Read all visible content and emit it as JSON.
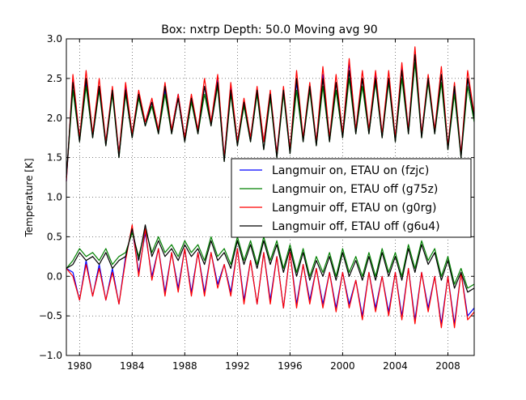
{
  "chart_data": {
    "type": "line",
    "title": "Box: nxtrp Depth: 50.0 Moving avg 90",
    "xlabel": "",
    "ylabel": "Temperature [K]",
    "xlim": [
      1979.0,
      2010.0
    ],
    "ylim": [
      -1.0,
      3.0
    ],
    "xticks": [
      1980,
      1984,
      1988,
      1992,
      1996,
      2000,
      2004,
      2008
    ],
    "xtick_labels": [
      "1980",
      "1984",
      "1988",
      "1992",
      "1996",
      "2000",
      "2004",
      "2008"
    ],
    "yticks": [
      -1.0,
      -0.5,
      0.0,
      0.5,
      1.0,
      1.5,
      2.0,
      2.5,
      3.0
    ],
    "ytick_labels": [
      "−1.0",
      "−0.5",
      "0.0",
      "0.5",
      "1.0",
      "1.5",
      "2.0",
      "2.5",
      "3.0"
    ],
    "grid": true,
    "legend_position": "center-right",
    "colors": {
      "fzjc": "#0000ff",
      "g75z": "#008000",
      "g0rg": "#ff0000",
      "g6u4": "#000000"
    },
    "groups": {
      "upper": {
        "x": [
          1979.0,
          1979.5,
          1980.0,
          1980.5,
          1981.0,
          1981.5,
          1982.0,
          1982.5,
          1983.0,
          1983.5,
          1984.0,
          1984.5,
          1985.0,
          1985.5,
          1986.0,
          1986.5,
          1987.0,
          1987.5,
          1988.0,
          1988.5,
          1989.0,
          1989.5,
          1990.0,
          1990.5,
          1991.0,
          1991.5,
          1992.0,
          1992.5,
          1993.0,
          1993.5,
          1994.0,
          1994.5,
          1995.0,
          1995.5,
          1996.0,
          1996.5,
          1997.0,
          1997.5,
          1998.0,
          1998.5,
          1999.0,
          1999.5,
          2000.0,
          2000.5,
          2001.0,
          2001.5,
          2002.0,
          2002.5,
          2003.0,
          2003.5,
          2004.0,
          2004.5,
          2005.0,
          2005.5,
          2006.0,
          2006.5,
          2007.0,
          2007.5,
          2008.0,
          2008.5,
          2009.0,
          2009.5,
          2010.0
        ],
        "series": [
          {
            "name": "Langmuir on, ETAU on (fzjc)",
            "key": "fzjc",
            "values": [
              1.2,
              2.5,
              1.75,
              2.45,
              1.8,
              2.4,
              1.7,
              2.35,
              1.55,
              2.4,
              1.8,
              2.3,
              1.95,
              2.2,
              1.85,
              2.35,
              1.85,
              2.3,
              1.75,
              2.25,
              1.85,
              2.4,
              1.95,
              2.5,
              1.5,
              2.4,
              1.7,
              2.2,
              1.75,
              2.35,
              1.7,
              2.3,
              1.55,
              2.35,
              1.6,
              2.45,
              1.75,
              2.4,
              1.7,
              2.55,
              1.75,
              2.45,
              1.8,
              2.7,
              1.85,
              2.5,
              1.85,
              2.55,
              1.8,
              2.5,
              1.75,
              2.65,
              1.85,
              2.85,
              1.8,
              2.5,
              1.85,
              2.55,
              1.65,
              2.35,
              1.55,
              2.5,
              2.0
            ]
          },
          {
            "name": "Langmuir on, ETAU off (g75z)",
            "key": "g75z",
            "values": [
              1.25,
              2.35,
              1.7,
              2.4,
              1.75,
              2.35,
              1.65,
              2.3,
              1.5,
              2.3,
              1.75,
              2.25,
              1.9,
              2.15,
              1.8,
              2.3,
              1.8,
              2.25,
              1.7,
              2.2,
              1.8,
              2.3,
              1.9,
              2.4,
              1.45,
              2.3,
              1.65,
              2.15,
              1.7,
              2.3,
              1.6,
              2.25,
              1.5,
              2.3,
              1.55,
              2.35,
              1.7,
              2.35,
              1.65,
              2.4,
              1.7,
              2.35,
              1.75,
              2.5,
              1.8,
              2.4,
              1.8,
              2.45,
              1.75,
              2.45,
              1.7,
              2.5,
              1.8,
              2.7,
              1.75,
              2.45,
              1.8,
              2.45,
              1.6,
              2.3,
              1.5,
              2.4,
              1.95
            ]
          },
          {
            "name": "Langmuir off, ETAU on (g0rg)",
            "key": "g0rg",
            "values": [
              1.2,
              2.55,
              1.75,
              2.6,
              1.8,
              2.5,
              1.7,
              2.4,
              1.55,
              2.45,
              1.8,
              2.35,
              1.95,
              2.25,
              1.85,
              2.45,
              1.85,
              2.3,
              1.75,
              2.3,
              1.85,
              2.5,
              1.95,
              2.55,
              1.5,
              2.45,
              1.7,
              2.25,
              1.75,
              2.4,
              1.7,
              2.35,
              1.55,
              2.4,
              1.6,
              2.6,
              1.75,
              2.45,
              1.7,
              2.65,
              1.75,
              2.55,
              1.8,
              2.75,
              1.85,
              2.6,
              1.85,
              2.6,
              1.8,
              2.6,
              1.75,
              2.7,
              1.85,
              2.9,
              1.8,
              2.55,
              1.85,
              2.65,
              1.65,
              2.45,
              1.55,
              2.6,
              2.05
            ]
          },
          {
            "name": "Langmuir off, ETAU off (g6u4)",
            "key": "g6u4",
            "values": [
              1.25,
              2.45,
              1.7,
              2.5,
              1.75,
              2.4,
              1.65,
              2.35,
              1.5,
              2.35,
              1.75,
              2.3,
              1.9,
              2.2,
              1.8,
              2.4,
              1.8,
              2.25,
              1.7,
              2.25,
              1.8,
              2.4,
              1.9,
              2.45,
              1.45,
              2.35,
              1.65,
              2.2,
              1.7,
              2.35,
              1.6,
              2.3,
              1.5,
              2.35,
              1.55,
              2.5,
              1.7,
              2.4,
              1.65,
              2.5,
              1.7,
              2.45,
              1.75,
              2.6,
              1.8,
              2.5,
              1.8,
              2.5,
              1.75,
              2.5,
              1.7,
              2.6,
              1.8,
              2.8,
              1.75,
              2.5,
              1.8,
              2.55,
              1.6,
              2.4,
              1.5,
              2.5,
              2.0
            ]
          }
        ]
      },
      "lower": {
        "x": [
          1979.0,
          1979.5,
          1980.0,
          1980.5,
          1981.0,
          1981.5,
          1982.0,
          1982.5,
          1983.0,
          1983.5,
          1984.0,
          1984.5,
          1985.0,
          1985.5,
          1986.0,
          1986.5,
          1987.0,
          1987.5,
          1988.0,
          1988.5,
          1989.0,
          1989.5,
          1990.0,
          1990.5,
          1991.0,
          1991.5,
          1992.0,
          1992.5,
          1993.0,
          1993.5,
          1994.0,
          1994.5,
          1995.0,
          1995.5,
          1996.0,
          1996.5,
          1997.0,
          1997.5,
          1998.0,
          1998.5,
          1999.0,
          1999.5,
          2000.0,
          2000.5,
          2001.0,
          2001.5,
          2002.0,
          2002.5,
          2003.0,
          2003.5,
          2004.0,
          2004.5,
          2005.0,
          2005.5,
          2006.0,
          2006.5,
          2007.0,
          2007.5,
          2008.0,
          2008.5,
          2009.0,
          2009.5,
          2010.0
        ],
        "series": [
          {
            "name": "Langmuir on, ETAU on (fzjc)",
            "key": "fzjc",
            "values": [
              0.1,
              0.05,
              -0.3,
              0.2,
              -0.25,
              0.15,
              -0.3,
              0.1,
              -0.35,
              0.25,
              0.6,
              0.05,
              0.55,
              0.0,
              0.35,
              -0.2,
              0.3,
              -0.15,
              0.35,
              -0.2,
              0.3,
              -0.2,
              0.3,
              -0.1,
              0.15,
              -0.2,
              0.35,
              -0.3,
              0.2,
              -0.35,
              0.3,
              -0.3,
              0.25,
              -0.4,
              0.3,
              -0.35,
              0.15,
              -0.3,
              0.1,
              -0.35,
              0.05,
              -0.4,
              0.05,
              -0.35,
              -0.05,
              -0.5,
              0.05,
              -0.4,
              0.0,
              -0.45,
              0.05,
              -0.5,
              0.1,
              -0.55,
              0.05,
              -0.4,
              0.0,
              -0.6,
              0.0,
              -0.6,
              0.05,
              -0.5,
              -0.4
            ]
          },
          {
            "name": "Langmuir on, ETAU off (g75z)",
            "key": "g75z",
            "values": [
              0.1,
              0.2,
              0.35,
              0.25,
              0.3,
              0.2,
              0.35,
              0.15,
              0.25,
              0.3,
              0.55,
              0.25,
              0.6,
              0.3,
              0.5,
              0.3,
              0.4,
              0.25,
              0.45,
              0.3,
              0.4,
              0.2,
              0.5,
              0.25,
              0.35,
              0.15,
              0.5,
              0.2,
              0.45,
              0.15,
              0.5,
              0.2,
              0.45,
              0.1,
              0.4,
              0.05,
              0.35,
              0.0,
              0.25,
              0.05,
              0.3,
              0.0,
              0.35,
              0.05,
              0.25,
              0.0,
              0.3,
              0.0,
              0.35,
              0.05,
              0.3,
              0.0,
              0.4,
              0.1,
              0.45,
              0.2,
              0.35,
              0.0,
              0.25,
              -0.1,
              0.1,
              -0.15,
              -0.1
            ]
          },
          {
            "name": "Langmuir off, ETAU on (g0rg)",
            "key": "g0rg",
            "values": [
              0.1,
              0.0,
              -0.3,
              0.15,
              -0.25,
              0.1,
              -0.3,
              0.05,
              -0.35,
              0.2,
              0.65,
              0.0,
              0.6,
              -0.05,
              0.35,
              -0.25,
              0.3,
              -0.2,
              0.35,
              -0.25,
              0.3,
              -0.25,
              0.3,
              -0.15,
              0.15,
              -0.25,
              0.35,
              -0.35,
              0.2,
              -0.35,
              0.3,
              -0.35,
              0.25,
              -0.4,
              0.3,
              -0.4,
              0.15,
              -0.35,
              0.1,
              -0.4,
              0.05,
              -0.45,
              0.05,
              -0.4,
              -0.05,
              -0.55,
              0.05,
              -0.45,
              0.0,
              -0.5,
              0.05,
              -0.55,
              0.1,
              -0.6,
              0.05,
              -0.45,
              0.0,
              -0.65,
              0.0,
              -0.65,
              0.05,
              -0.55,
              -0.45
            ]
          },
          {
            "name": "Langmuir off, ETAU off (g6u4)",
            "key": "g6u4",
            "values": [
              0.1,
              0.15,
              0.3,
              0.2,
              0.25,
              0.15,
              0.3,
              0.1,
              0.2,
              0.25,
              0.6,
              0.2,
              0.65,
              0.25,
              0.45,
              0.25,
              0.35,
              0.2,
              0.4,
              0.25,
              0.35,
              0.15,
              0.45,
              0.2,
              0.3,
              0.1,
              0.45,
              0.15,
              0.4,
              0.1,
              0.45,
              0.15,
              0.4,
              0.05,
              0.35,
              0.0,
              0.3,
              -0.05,
              0.2,
              0.0,
              0.25,
              -0.05,
              0.3,
              0.0,
              0.2,
              -0.05,
              0.25,
              -0.05,
              0.3,
              0.0,
              0.25,
              -0.05,
              0.35,
              0.05,
              0.4,
              0.15,
              0.3,
              -0.05,
              0.2,
              -0.15,
              0.05,
              -0.2,
              -0.15
            ]
          }
        ]
      }
    },
    "legend": [
      {
        "label": "Langmuir on, ETAU on (fzjc)",
        "key": "fzjc"
      },
      {
        "label": "Langmuir on, ETAU off (g75z)",
        "key": "g75z"
      },
      {
        "label": "Langmuir off, ETAU on (g0rg)",
        "key": "g0rg"
      },
      {
        "label": "Langmuir off, ETAU off (g6u4)",
        "key": "g6u4"
      }
    ]
  }
}
